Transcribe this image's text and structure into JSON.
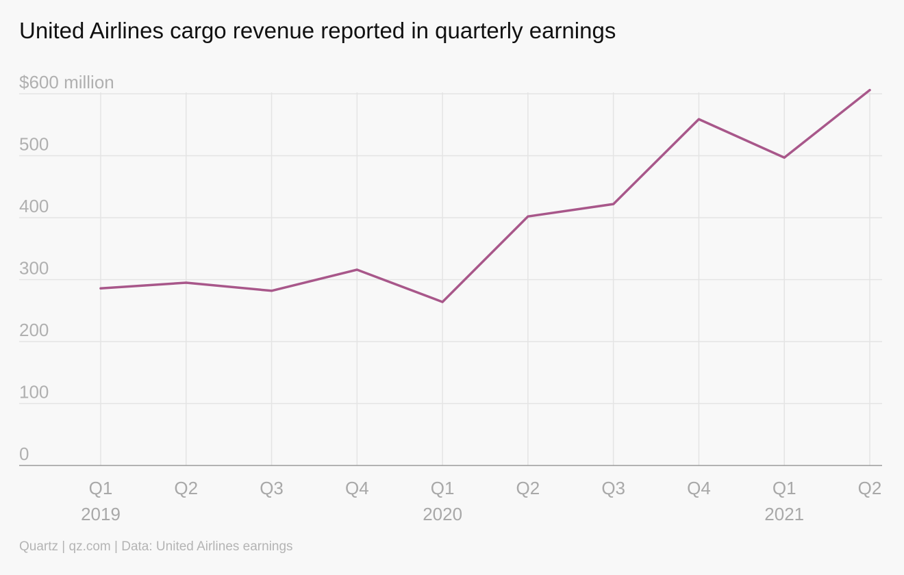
{
  "chart_data": {
    "type": "line",
    "title": "United Airlines cargo revenue reported in quarterly earnings",
    "ylabel": "",
    "xlabel": "",
    "ylim": [
      0,
      600
    ],
    "yticks": [
      {
        "value": 0,
        "label": "0"
      },
      {
        "value": 100,
        "label": "100"
      },
      {
        "value": 200,
        "label": "200"
      },
      {
        "value": 300,
        "label": "300"
      },
      {
        "value": 400,
        "label": "400"
      },
      {
        "value": 500,
        "label": "500"
      },
      {
        "value": 600,
        "label": "$600 million"
      }
    ],
    "categories": [
      "Q1",
      "Q2",
      "Q3",
      "Q4",
      "Q1",
      "Q2",
      "Q3",
      "Q4",
      "Q1",
      "Q2"
    ],
    "year_labels": [
      "2019",
      "",
      "",
      "",
      "2020",
      "",
      "",
      "",
      "2021",
      ""
    ],
    "series": [
      {
        "values": [
          286,
          295,
          282,
          316,
          264,
          402,
          422,
          559,
          497,
          606
        ],
        "color": "#a8578a"
      }
    ],
    "grid": true,
    "legend": "none"
  },
  "source": "Quartz | qz.com | Data: United Airlines earnings"
}
